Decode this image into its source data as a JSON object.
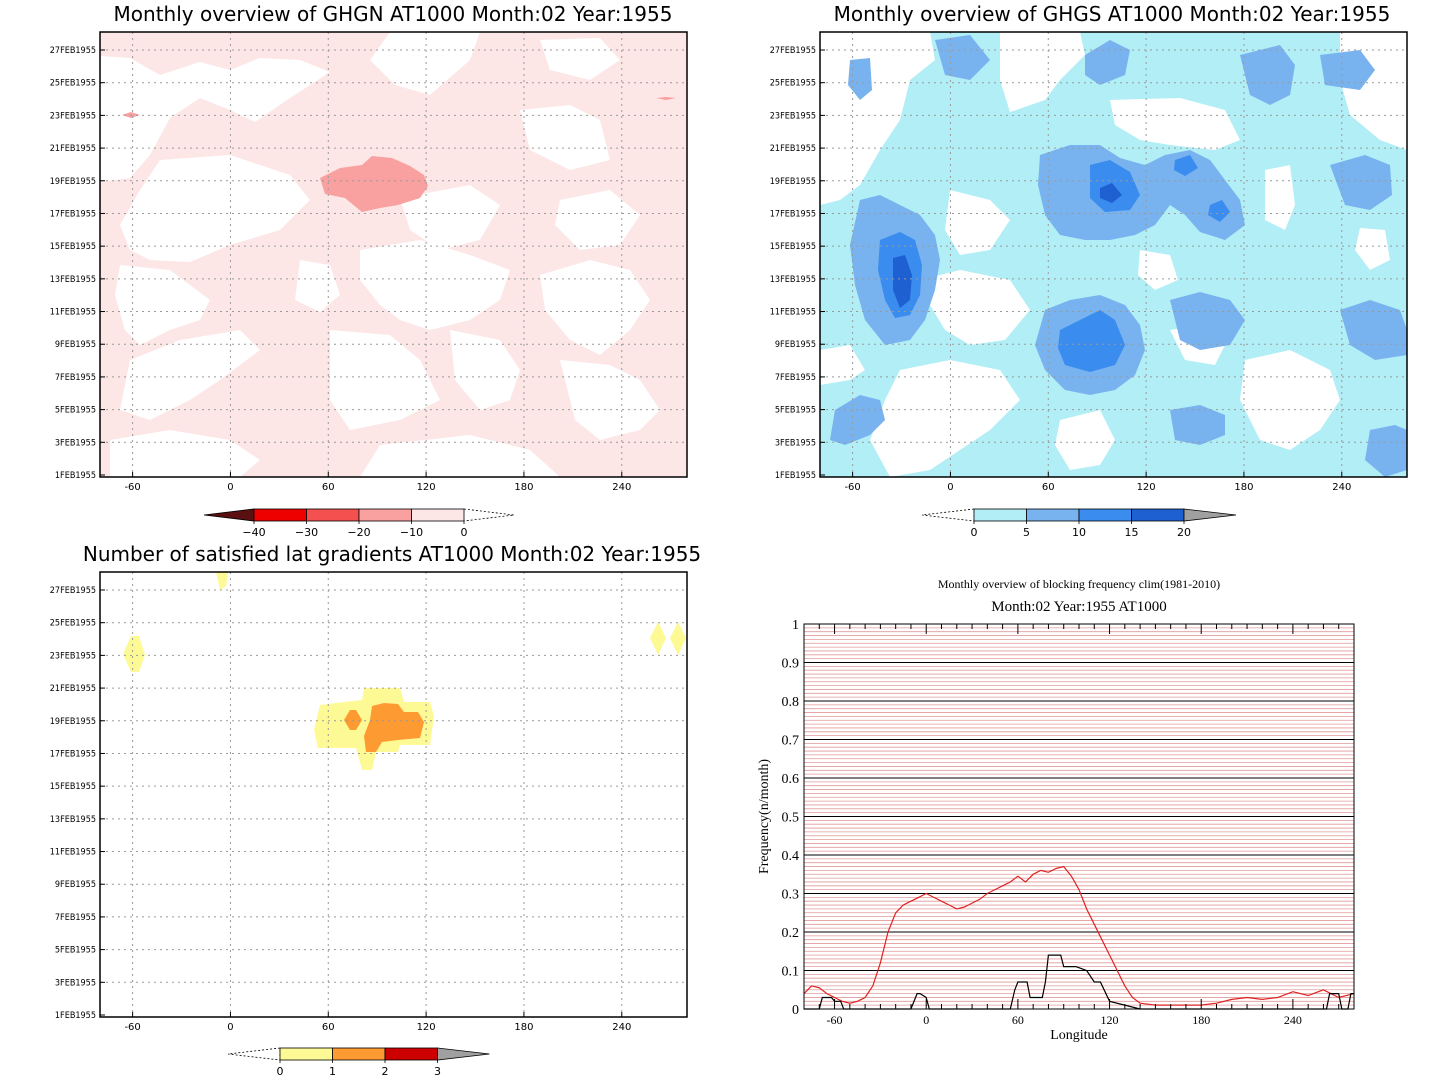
{
  "panels": {
    "ghgn": {
      "title": "Monthly overview of GHGN AT1000 Month:02 Year:1955",
      "colorbar_labels": [
        "−40",
        "−30",
        "−20",
        "−10",
        "0"
      ],
      "colorbar_colors": [
        "#5a1010",
        "#ee0000",
        "#f55050",
        "#f9a0a0",
        "#fde6e6"
      ]
    },
    "ghgs": {
      "title": "Monthly overview of GHGS AT1000 Month:02 Year:1955",
      "colorbar_labels": [
        "0",
        "5",
        "10",
        "15",
        "20"
      ],
      "colorbar_colors": [
        "#b2eef6",
        "#78b2ef",
        "#3a8cef",
        "#1e5fd2",
        "#a0a0a0"
      ]
    },
    "lat": {
      "title": "Number of satisfied lat gradients AT1000 Month:02 Year:1955",
      "colorbar_labels": [
        "0",
        "1",
        "2",
        "3"
      ],
      "colorbar_colors": [
        "#fdfa96",
        "#fd9a32",
        "#cc0000",
        "#a0a0a0"
      ]
    },
    "freq": {
      "title1": "Monthly overview of blocking frequency clim(1981-2010)",
      "title2": "Month:02 Year:1955  AT1000"
    }
  },
  "chart_data": [
    {
      "type": "heatmap",
      "title": "Monthly overview of GHGN AT1000 Month:02 Year:1955",
      "x_ticks": [
        "-60",
        "0",
        "60",
        "120",
        "180",
        "240"
      ],
      "y_ticks": [
        "1FEB1955",
        "3FEB1955",
        "5FEB1955",
        "7FEB1955",
        "9FEB1955",
        "11FEB1955",
        "13FEB1955",
        "15FEB1955",
        "17FEB1955",
        "19FEB1955",
        "21FEB1955",
        "23FEB1955",
        "25FEB1955",
        "27FEB1955"
      ],
      "xlim": [
        -80,
        280
      ],
      "levels": [
        -40,
        -30,
        -20,
        -10,
        0
      ]
    },
    {
      "type": "heatmap",
      "title": "Monthly overview of GHGS AT1000 Month:02 Year:1955",
      "x_ticks": [
        "-60",
        "0",
        "60",
        "120",
        "180",
        "240"
      ],
      "y_ticks": [
        "1FEB1955",
        "3FEB1955",
        "5FEB1955",
        "7FEB1955",
        "9FEB1955",
        "11FEB1955",
        "13FEB1955",
        "15FEB1955",
        "17FEB1955",
        "19FEB1955",
        "21FEB1955",
        "23FEB1955",
        "25FEB1955",
        "27FEB1955"
      ],
      "xlim": [
        -80,
        280
      ],
      "levels": [
        0,
        5,
        10,
        15,
        20
      ]
    },
    {
      "type": "heatmap",
      "title": "Number of satisfied lat gradients AT1000 Month:02 Year:1955",
      "x_ticks": [
        "-60",
        "0",
        "60",
        "120",
        "180",
        "240"
      ],
      "y_ticks": [
        "1FEB1955",
        "3FEB1955",
        "5FEB1955",
        "7FEB1955",
        "9FEB1955",
        "11FEB1955",
        "13FEB1955",
        "15FEB1955",
        "17FEB1955",
        "19FEB1955",
        "21FEB1955",
        "23FEB1955",
        "25FEB1955",
        "27FEB1955"
      ],
      "xlim": [
        -80,
        280
      ],
      "levels": [
        0,
        1,
        2,
        3
      ]
    },
    {
      "type": "line",
      "title": "Monthly overview of blocking frequency clim(1981-2010)",
      "subtitle": "Month:02 Year:1955  AT1000",
      "xlabel": "Longitude",
      "ylabel": "Frequency(n/month)",
      "xlim": [
        -80,
        280
      ],
      "ylim": [
        0,
        1
      ],
      "x_ticks": [
        "-60",
        "0",
        "60",
        "120",
        "180",
        "240"
      ],
      "y_ticks": [
        "0",
        "0.1",
        "0.2",
        "0.3",
        "0.4",
        "0.5",
        "0.6",
        "0.7",
        "0.8",
        "0.9",
        "1"
      ],
      "series": [
        {
          "color": "#e02020",
          "x": [
            -80,
            -75,
            -70,
            -65,
            -60,
            -55,
            -50,
            -45,
            -40,
            -35,
            -30,
            -25,
            -20,
            -15,
            -10,
            -5,
            0,
            5,
            10,
            15,
            20,
            25,
            30,
            35,
            40,
            45,
            50,
            55,
            60,
            65,
            70,
            75,
            80,
            85,
            90,
            95,
            100,
            105,
            110,
            115,
            120,
            125,
            130,
            135,
            140,
            150,
            160,
            170,
            180,
            190,
            200,
            210,
            220,
            230,
            240,
            250,
            260,
            270,
            280
          ],
          "y": [
            0.04,
            0.06,
            0.055,
            0.04,
            0.03,
            0.02,
            0.015,
            0.02,
            0.03,
            0.06,
            0.12,
            0.2,
            0.25,
            0.27,
            0.28,
            0.29,
            0.3,
            0.29,
            0.28,
            0.27,
            0.26,
            0.265,
            0.275,
            0.285,
            0.3,
            0.31,
            0.32,
            0.33,
            0.345,
            0.33,
            0.35,
            0.36,
            0.355,
            0.365,
            0.37,
            0.345,
            0.31,
            0.26,
            0.22,
            0.18,
            0.14,
            0.1,
            0.06,
            0.03,
            0.015,
            0.01,
            0.01,
            0.01,
            0.01,
            0.015,
            0.025,
            0.03,
            0.025,
            0.03,
            0.045,
            0.035,
            0.05,
            0.03,
            0.04
          ]
        },
        {
          "color": "#000000",
          "x": [
            -80,
            -70,
            -68,
            -62,
            -60,
            -56,
            -54,
            -50,
            -10,
            -6,
            -4,
            0,
            2,
            6,
            55,
            58,
            60,
            66,
            68,
            72,
            76,
            78,
            80,
            88,
            90,
            96,
            98,
            105,
            110,
            114,
            120,
            140,
            245,
            262,
            264,
            270,
            272,
            276,
            278,
            280
          ],
          "y": [
            0,
            0,
            0.03,
            0.03,
            0.02,
            0.02,
            0,
            0,
            0,
            0.04,
            0.04,
            0.03,
            0,
            0,
            0,
            0.05,
            0.07,
            0.07,
            0.03,
            0.03,
            0.03,
            0.07,
            0.14,
            0.14,
            0.11,
            0.11,
            0.11,
            0.1,
            0.07,
            0.07,
            0.02,
            0,
            0,
            0,
            0.04,
            0.04,
            0,
            0,
            0.04,
            0.04
          ]
        }
      ]
    }
  ]
}
